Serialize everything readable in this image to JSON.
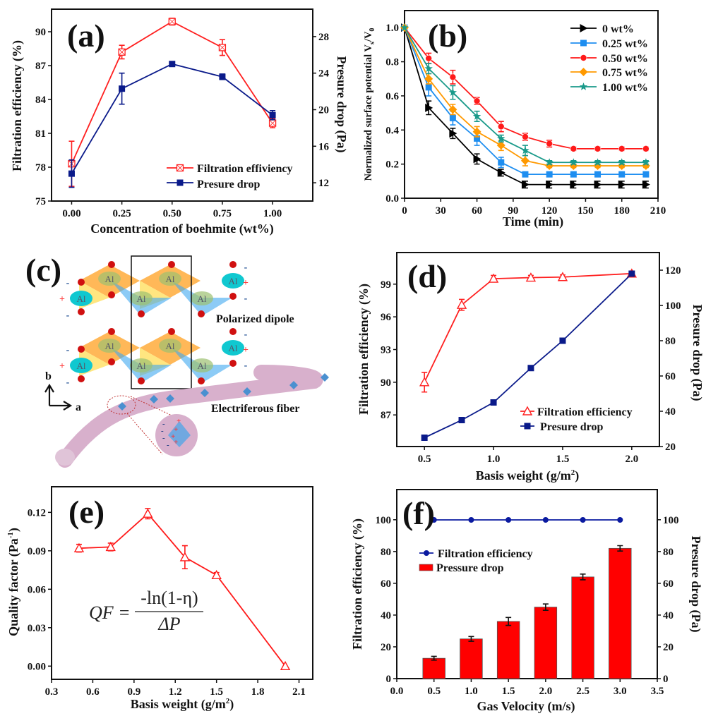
{
  "chart_data": [
    {
      "panel": "(a)",
      "type": "line",
      "dual_axis": true,
      "xlabel": "Concentration of boehmite (wt%)",
      "ylabel": "Filtration efficiency (%)",
      "y2label": "Presure drop (Pa)",
      "xlim": [
        -0.1,
        1.2
      ],
      "ylim": [
        75,
        92
      ],
      "y2lim": [
        10,
        31
      ],
      "xticks": [
        0,
        0.25,
        0.5,
        0.75,
        1.0
      ],
      "xtick_labels": [
        "0.00",
        "0.25",
        "0.50",
        "0.75",
        "1.00"
      ],
      "yticks": [
        75,
        78,
        81,
        84,
        87,
        90
      ],
      "ytick_labels": [
        "75",
        "78",
        "81",
        "84",
        "87",
        "90"
      ],
      "y2ticks": [
        12,
        16,
        20,
        24,
        28
      ],
      "y2tick_labels": [
        "12",
        "16",
        "20",
        "24",
        "28"
      ],
      "x": [
        0,
        0.25,
        0.5,
        0.75,
        1.0
      ],
      "series": [
        {
          "name": "Filtration effiviency",
          "axis": "left",
          "color": "#ff2020",
          "marker": "square-x-open",
          "values": [
            78.3,
            88.2,
            90.9,
            88.6,
            81.9
          ],
          "errors": [
            2.0,
            0.6,
            0.3,
            0.7,
            0.4
          ]
        },
        {
          "name": "Presure drop",
          "axis": "right",
          "color": "#0a1a8a",
          "marker": "square",
          "values": [
            13.0,
            22.3,
            25.0,
            23.6,
            19.4
          ],
          "errors": [
            1.5,
            1.7,
            0.2,
            0.3,
            0.5
          ]
        }
      ],
      "legend": "bottom-right",
      "grid": false
    },
    {
      "panel": "(b)",
      "type": "line",
      "xlabel": "Time (min)",
      "ylabel_parts": [
        "Normalized surface potential V",
        "s",
        "/V",
        "0"
      ],
      "xlim": [
        0,
        210
      ],
      "ylim": [
        0,
        1.1
      ],
      "xticks": [
        0,
        30,
        60,
        90,
        120,
        150,
        180,
        210
      ],
      "xtick_labels": [
        "0",
        "30",
        "60",
        "90",
        "120",
        "150",
        "180",
        "210"
      ],
      "yticks": [
        0,
        0.2,
        0.4,
        0.6,
        0.8,
        1.0
      ],
      "ytick_labels": [
        "0.0",
        "0.2",
        "0.4",
        "0.6",
        "0.8",
        "1.0"
      ],
      "x": [
        0,
        20,
        40,
        60,
        80,
        100,
        120,
        140,
        160,
        180,
        200
      ],
      "series": [
        {
          "name": "0 wt%",
          "color": "#000000",
          "marker": "triangle-right",
          "values": [
            1.0,
            0.53,
            0.38,
            0.23,
            0.15,
            0.08,
            0.08,
            0.08,
            0.08,
            0.08,
            0.08
          ],
          "errors": [
            0,
            0.04,
            0.03,
            0.03,
            0.02,
            0.02,
            0.02,
            0.02,
            0.02,
            0.02,
            0.02
          ]
        },
        {
          "name": "0.25 wt%",
          "color": "#1e8ef0",
          "marker": "square",
          "values": [
            1.0,
            0.65,
            0.47,
            0.35,
            0.21,
            0.14,
            0.14,
            0.14,
            0.14,
            0.14,
            0.14
          ],
          "errors": [
            0,
            0.05,
            0.04,
            0.04,
            0.03,
            0.01,
            0.01,
            0.01,
            0.01,
            0.01,
            0.01
          ]
        },
        {
          "name": "0.50 wt%",
          "color": "#ff1a1a",
          "marker": "circle",
          "values": [
            1.0,
            0.82,
            0.71,
            0.57,
            0.42,
            0.36,
            0.32,
            0.29,
            0.29,
            0.29,
            0.29
          ],
          "errors": [
            0,
            0.03,
            0.04,
            0.02,
            0.03,
            0.02,
            0.02,
            0.01,
            0.01,
            0.01,
            0.01
          ]
        },
        {
          "name": "0.75 wt%",
          "color": "#ff9900",
          "marker": "diamond",
          "values": [
            1.0,
            0.7,
            0.52,
            0.39,
            0.31,
            0.22,
            0.19,
            0.19,
            0.19,
            0.19,
            0.19
          ],
          "errors": [
            0,
            0.03,
            0.03,
            0.03,
            0.03,
            0.03,
            0.01,
            0.01,
            0.01,
            0.01,
            0.01
          ]
        },
        {
          "name": "1.00 wt%",
          "color": "#1a9a8a",
          "marker": "star",
          "values": [
            1.0,
            0.76,
            0.62,
            0.48,
            0.35,
            0.28,
            0.21,
            0.21,
            0.21,
            0.21,
            0.21
          ],
          "errors": [
            0,
            0.03,
            0.04,
            0.03,
            0.02,
            0.03,
            0.01,
            0.01,
            0.01,
            0.01,
            0.01
          ]
        }
      ],
      "legend": "top-right",
      "grid": false
    },
    {
      "panel": "(d)",
      "type": "line",
      "dual_axis": true,
      "xlabel_parts": [
        "Basis weight (g/m",
        "2",
        ")"
      ],
      "ylabel": "Filtration efficiency (%)",
      "y2label": "Presure drop (Pa)",
      "xlim": [
        0.3,
        2.2
      ],
      "ylim": [
        84.1,
        101.9
      ],
      "y2lim": [
        20,
        130
      ],
      "xticks": [
        0.5,
        1.0,
        1.5,
        2.0
      ],
      "xtick_labels": [
        "0.5",
        "1.0",
        "1.5",
        "2.0"
      ],
      "yticks": [
        87,
        90,
        93,
        96,
        99
      ],
      "ytick_labels": [
        "87",
        "90",
        "93",
        "96",
        "99"
      ],
      "y2ticks": [
        20,
        40,
        60,
        80,
        100,
        120
      ],
      "y2tick_labels": [
        "20",
        "40",
        "60",
        "80",
        "100",
        "120"
      ],
      "x": [
        0.5,
        0.77,
        1.0,
        1.27,
        1.5,
        2.0
      ],
      "series": [
        {
          "name": "Filtration efficiency",
          "axis": "left",
          "color": "#ff2020",
          "marker": "triangle-open",
          "values": [
            90.0,
            97.1,
            99.5,
            99.6,
            99.65,
            99.97
          ],
          "errors": [
            0.9,
            0.5,
            0.3,
            0.2,
            0.2,
            0.2
          ]
        },
        {
          "name": "Presure drop",
          "axis": "right",
          "color": "#0a1a8a",
          "marker": "square",
          "values": [
            25,
            35,
            45,
            64.5,
            80,
            118
          ],
          "errors": [
            1,
            0.5,
            0.5,
            0.5,
            0.5,
            1
          ]
        }
      ],
      "legend": "bottom-right",
      "grid": false
    },
    {
      "panel": "(e)",
      "type": "line",
      "xlabel_parts": [
        "Basis weight (g/m",
        "2",
        ")"
      ],
      "ylabel_parts": [
        "Quality factor (Pa",
        "-1",
        ")"
      ],
      "xlim": [
        0.3,
        2.2
      ],
      "ylim": [
        -0.0103,
        0.14
      ],
      "xticks": [
        0.3,
        0.6,
        0.9,
        1.2,
        1.5,
        1.8,
        2.1
      ],
      "xtick_labels": [
        "0.3",
        "0.6",
        "0.9",
        "1.2",
        "1.5",
        "1.8",
        "2.1"
      ],
      "yticks": [
        0,
        0.03,
        0.06,
        0.09,
        0.12
      ],
      "ytick_labels": [
        "0.00",
        "0.03",
        "0.06",
        "0.09",
        "0.12"
      ],
      "x": [
        0.5,
        0.73,
        1.0,
        1.27,
        1.5,
        2.0
      ],
      "series": [
        {
          "color": "#ff1a1a",
          "marker": "triangle-open",
          "values": [
            0.092,
            0.093,
            0.119,
            0.085,
            0.071,
            0.0
          ],
          "errors": [
            0.003,
            0.003,
            0.004,
            0.009,
            0.002,
            0
          ]
        }
      ],
      "annotation": {
        "lhs": "QF =",
        "numerator": "-ln(1-η)",
        "denominator": "ΔP"
      },
      "grid": false
    },
    {
      "panel": "(f)",
      "type": "bar+line",
      "dual_axis": true,
      "xlabel": "Gas Velocity (m/s)",
      "ylabel": "Filtration efficiency (%)",
      "y2label": "Presure drop (Pa)",
      "xlim": [
        0,
        3.5
      ],
      "ylim": [
        0,
        119
      ],
      "y2lim": [
        0,
        119
      ],
      "xticks": [
        0,
        0.5,
        1.0,
        1.5,
        2.0,
        2.5,
        3.0,
        3.5
      ],
      "xtick_labels": [
        "0.0",
        "0.5",
        "1.0",
        "1.5",
        "2.0",
        "2.5",
        "3.0",
        "3.5"
      ],
      "yticks": [
        0,
        20,
        40,
        60,
        80,
        100
      ],
      "ytick_labels": [
        "0",
        "20",
        "40",
        "60",
        "80",
        "100"
      ],
      "y2ticks": [
        0,
        20,
        40,
        60,
        80,
        100
      ],
      "y2tick_labels": [
        "0",
        "20",
        "40",
        "60",
        "80",
        "100"
      ],
      "x": [
        0.5,
        1.0,
        1.5,
        2.0,
        2.5,
        3.0
      ],
      "series": [
        {
          "name": "Filtration efficiency",
          "kind": "line",
          "axis": "left",
          "color": "#0a1aa0",
          "marker": "circle-filled",
          "values": [
            99.9,
            99.9,
            99.9,
            99.9,
            99.9,
            99.9
          ],
          "errors": [
            0,
            0,
            0,
            0,
            0,
            0
          ]
        },
        {
          "name": "Pressure drop",
          "kind": "bar",
          "axis": "right",
          "color": "#ff0000",
          "values": [
            12.8,
            25,
            36,
            45,
            64,
            82
          ],
          "errors": [
            1.2,
            1.5,
            2.5,
            2.0,
            1.8,
            1.7
          ]
        }
      ],
      "legend": "upper-left",
      "grid": false
    }
  ],
  "illustration": {
    "panel": "(c)",
    "atom_label": "Al",
    "dipole_label": "Polarized  dipole",
    "fiber_label": "Electriferous fiber",
    "axis_b": "b",
    "axis_a": "a",
    "plus": "+",
    "minus": "-",
    "colors": {
      "octa_orange": "#ffa020",
      "octa_yellow": "#ffe060",
      "octa_blue": "#40a8f0",
      "al": "#10c8d0",
      "oxygen": "#d01010",
      "fiber": "#d8b0cc"
    }
  }
}
